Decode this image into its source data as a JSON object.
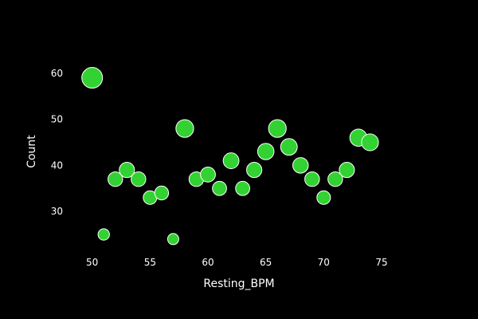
{
  "chart_data": {
    "type": "scatter",
    "title": "",
    "xlabel": "Resting_BPM",
    "ylabel": "Count",
    "xlim": [
      47.2,
      79.2
    ],
    "ylim": [
      20.5,
      65.5
    ],
    "xticks": [
      50,
      55,
      60,
      65,
      70,
      75
    ],
    "yticks": [
      30,
      40,
      50,
      60
    ],
    "grid": false,
    "legend": false,
    "colors": {
      "background": "#000000",
      "marker_fill": "#32d232",
      "marker_stroke": "#ffffff",
      "text": "#ffffff"
    },
    "points": [
      {
        "x": 50,
        "y": 59
      },
      {
        "x": 51,
        "y": 25
      },
      {
        "x": 52,
        "y": 37
      },
      {
        "x": 53,
        "y": 39
      },
      {
        "x": 54,
        "y": 37
      },
      {
        "x": 55,
        "y": 33
      },
      {
        "x": 56,
        "y": 34
      },
      {
        "x": 57,
        "y": 24
      },
      {
        "x": 58,
        "y": 48
      },
      {
        "x": 59,
        "y": 37
      },
      {
        "x": 60,
        "y": 38
      },
      {
        "x": 61,
        "y": 35
      },
      {
        "x": 62,
        "y": 41
      },
      {
        "x": 63,
        "y": 35
      },
      {
        "x": 64,
        "y": 39
      },
      {
        "x": 65,
        "y": 43
      },
      {
        "x": 66,
        "y": 48
      },
      {
        "x": 67,
        "y": 44
      },
      {
        "x": 68,
        "y": 40
      },
      {
        "x": 69,
        "y": 37
      },
      {
        "x": 70,
        "y": 33
      },
      {
        "x": 71,
        "y": 37
      },
      {
        "x": 72,
        "y": 39
      },
      {
        "x": 73,
        "y": 46
      },
      {
        "x": 74,
        "y": 45
      }
    ]
  }
}
